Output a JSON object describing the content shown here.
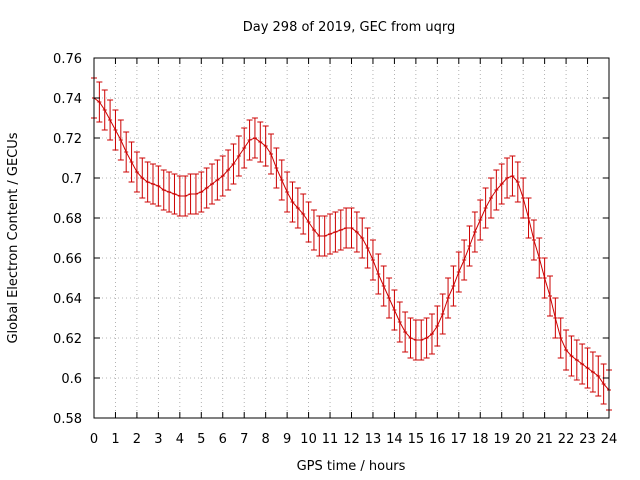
{
  "chart_data": {
    "type": "line",
    "title": "Day 298 of 2019, GEC from uqrg",
    "xlabel": "GPS time / hours",
    "ylabel": "Global Electron Content / GECUs",
    "xlim": [
      0,
      24
    ],
    "ylim": [
      0.58,
      0.76
    ],
    "grid": true,
    "xticks": [
      0,
      1,
      2,
      3,
      4,
      5,
      6,
      7,
      8,
      9,
      10,
      11,
      12,
      13,
      14,
      15,
      16,
      17,
      18,
      19,
      20,
      21,
      22,
      23,
      24
    ],
    "yticks": [
      0.58,
      0.6,
      0.62,
      0.64,
      0.66,
      0.68,
      0.7,
      0.72,
      0.74,
      0.76
    ],
    "ytick_labels": [
      "0.58",
      "0.6",
      "0.62",
      "0.64",
      "0.66",
      "0.68",
      "0.7",
      "0.72",
      "0.74",
      "0.76"
    ],
    "error": 0.01,
    "series": [
      {
        "name": "GEC",
        "color": "#cc0000",
        "x": [
          0.0,
          0.25,
          0.5,
          0.75,
          1.0,
          1.25,
          1.5,
          1.75,
          2.0,
          2.25,
          2.5,
          2.75,
          3.0,
          3.25,
          3.5,
          3.75,
          4.0,
          4.25,
          4.5,
          4.75,
          5.0,
          5.25,
          5.5,
          5.75,
          6.0,
          6.25,
          6.5,
          6.75,
          7.0,
          7.25,
          7.5,
          7.75,
          8.0,
          8.25,
          8.5,
          8.75,
          9.0,
          9.25,
          9.5,
          9.75,
          10.0,
          10.25,
          10.5,
          10.75,
          11.0,
          11.25,
          11.5,
          11.75,
          12.0,
          12.25,
          12.5,
          12.75,
          13.0,
          13.25,
          13.5,
          13.75,
          14.0,
          14.25,
          14.5,
          14.75,
          15.0,
          15.25,
          15.5,
          15.75,
          16.0,
          16.25,
          16.5,
          16.75,
          17.0,
          17.25,
          17.5,
          17.75,
          18.0,
          18.25,
          18.5,
          18.75,
          19.0,
          19.25,
          19.5,
          19.75,
          20.0,
          20.25,
          20.5,
          20.75,
          21.0,
          21.25,
          21.5,
          21.75,
          22.0,
          22.25,
          22.5,
          22.75,
          23.0,
          23.25,
          23.5,
          23.75,
          24.0
        ],
        "values": [
          0.74,
          0.738,
          0.734,
          0.729,
          0.724,
          0.719,
          0.713,
          0.708,
          0.703,
          0.7,
          0.698,
          0.697,
          0.696,
          0.694,
          0.693,
          0.692,
          0.691,
          0.691,
          0.692,
          0.692,
          0.693,
          0.695,
          0.697,
          0.699,
          0.701,
          0.704,
          0.707,
          0.711,
          0.715,
          0.719,
          0.72,
          0.718,
          0.716,
          0.712,
          0.705,
          0.699,
          0.693,
          0.688,
          0.685,
          0.682,
          0.678,
          0.674,
          0.671,
          0.671,
          0.672,
          0.673,
          0.674,
          0.675,
          0.675,
          0.673,
          0.67,
          0.665,
          0.659,
          0.652,
          0.646,
          0.64,
          0.634,
          0.628,
          0.623,
          0.62,
          0.619,
          0.619,
          0.62,
          0.622,
          0.626,
          0.632,
          0.64,
          0.646,
          0.653,
          0.659,
          0.666,
          0.673,
          0.679,
          0.685,
          0.69,
          0.694,
          0.697,
          0.7,
          0.701,
          0.698,
          0.69,
          0.68,
          0.669,
          0.66,
          0.65,
          0.641,
          0.63,
          0.62,
          0.614,
          0.611,
          0.609,
          0.607,
          0.605,
          0.603,
          0.601,
          0.597,
          0.594
        ]
      }
    ]
  }
}
